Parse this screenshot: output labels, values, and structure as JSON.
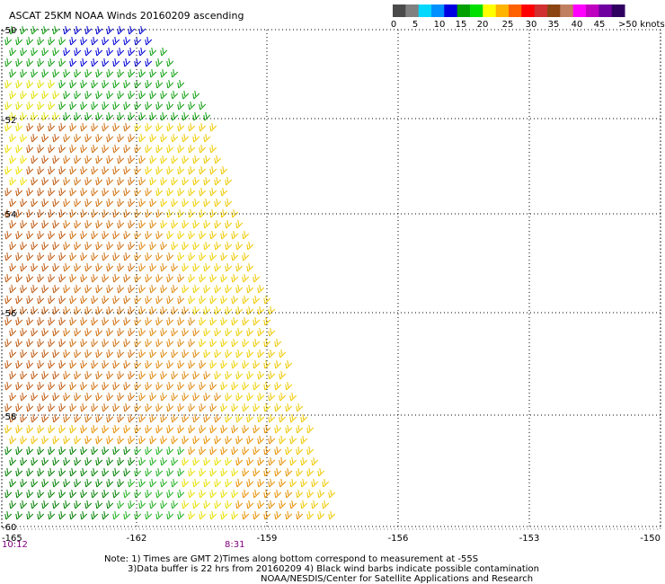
{
  "title": "ASCAT 25KM NOAA Winds 20160209 ascending",
  "legend": {
    "tick_labels": [
      "0",
      "5",
      "10",
      "15",
      "20",
      "25",
      "30",
      "35",
      "40",
      "45",
      ">50 knots"
    ],
    "colors": [
      "#4a4a4a",
      "#808080",
      "#00d8ff",
      "#0090ff",
      "#0000e0",
      "#00a000",
      "#00e000",
      "#ffff00",
      "#ffb400",
      "#ff6000",
      "#ff0000",
      "#d03030",
      "#8b4513",
      "#c08060",
      "#ff00ff",
      "#c000c0",
      "#7000a0",
      "#300060"
    ]
  },
  "map": {
    "lat_labels": [
      "-50",
      "-52",
      "-54",
      "-56",
      "-58",
      "-60"
    ],
    "lon_labels": [
      "-165",
      "-162",
      "-159",
      "-156",
      "-153",
      "-150"
    ],
    "lat_values": [
      -50,
      -52,
      -54,
      -56,
      -58,
      -60
    ],
    "lon_values": [
      -165,
      -162,
      -159,
      -156,
      -153,
      -150
    ],
    "lat_range": [
      -60,
      -50
    ],
    "lon_range": [
      -165,
      -150
    ],
    "grid": true,
    "grid_style": "dotted"
  },
  "times": {
    "left": "10:12",
    "mid": "8:31",
    "color": "#800080"
  },
  "notes": {
    "line1": "Note: 1) Times are GMT 2)Times along bottom correspond to measurement at -55S",
    "line2": "3)Data buffer is 22 hrs from 20160209 4) Black wind barbs indicate possible contamination",
    "line3": "NOAA/NESDIS/Center for Satellite Applications and Research"
  }
}
